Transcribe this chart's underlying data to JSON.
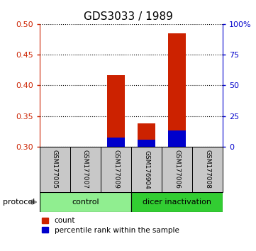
{
  "title": "GDS3033 / 1989",
  "samples": [
    "GSM177005",
    "GSM177007",
    "GSM177009",
    "GSM176904",
    "GSM177006",
    "GSM177008"
  ],
  "red_values": [
    0.3,
    0.3,
    0.417,
    0.338,
    0.485,
    0.3
  ],
  "blue_values": [
    0.3,
    0.3,
    0.315,
    0.312,
    0.327,
    0.3
  ],
  "base_value": 0.3,
  "ylim": [
    0.3,
    0.5
  ],
  "yticks": [
    0.3,
    0.35,
    0.4,
    0.45,
    0.5
  ],
  "right_yticks": [
    0,
    25,
    50,
    75,
    100
  ],
  "right_ytick_labels": [
    "0",
    "25",
    "50",
    "75",
    "100%"
  ],
  "control_color": "#90EE90",
  "dicer_color": "#32CD32",
  "bar_color_red": "#CC2200",
  "bar_color_blue": "#0000CC",
  "bar_width": 0.6,
  "background_color": "#ffffff",
  "tick_label_color_left": "#CC2200",
  "tick_label_color_right": "#0000CC",
  "gray_box_color": "#C8C8C8"
}
